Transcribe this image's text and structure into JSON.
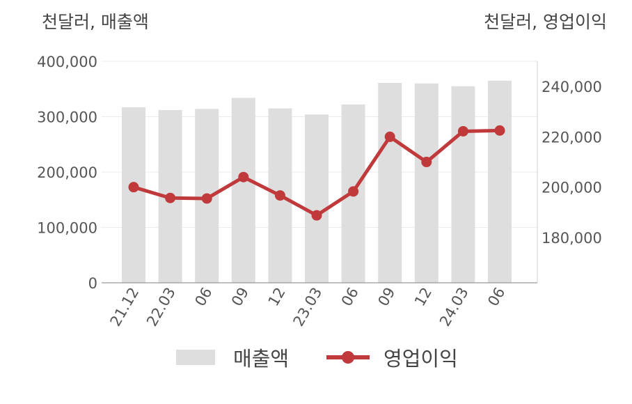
{
  "left_unit_label": "천달러, 매출액",
  "right_unit_label": "천달러, 영업이익",
  "chart_data": {
    "type": "bar+line",
    "categories": [
      "21.12",
      "22.03",
      "06",
      "09",
      "12",
      "23.03",
      "06",
      "09",
      "12",
      "24.03",
      "06"
    ],
    "series": [
      {
        "name": "매출액",
        "type": "bar",
        "axis": "left",
        "color": "#dedede",
        "values": [
          317000,
          312000,
          314000,
          334000,
          315000,
          304000,
          322000,
          361000,
          360000,
          355000,
          365000
        ]
      },
      {
        "name": "영업이익",
        "type": "line",
        "axis": "right",
        "color": "#c0393b",
        "values": [
          200000,
          195700,
          195500,
          204000,
          196700,
          188800,
          198300,
          220000,
          210000,
          222200,
          222500
        ]
      }
    ],
    "y_left": {
      "range": [
        0,
        400000
      ],
      "ticks": [
        0,
        100000,
        200000,
        300000,
        400000
      ],
      "tick_labels": [
        "0",
        "100,000",
        "200,000",
        "300,000",
        "400,000"
      ]
    },
    "y_right": {
      "range": [
        162000,
        250000
      ],
      "ticks": [
        180000,
        200000,
        220000,
        240000
      ],
      "tick_labels": [
        "180,000",
        "200,000",
        "220,000",
        "240,000"
      ]
    },
    "grid": true,
    "legend_position": "bottom-center"
  }
}
